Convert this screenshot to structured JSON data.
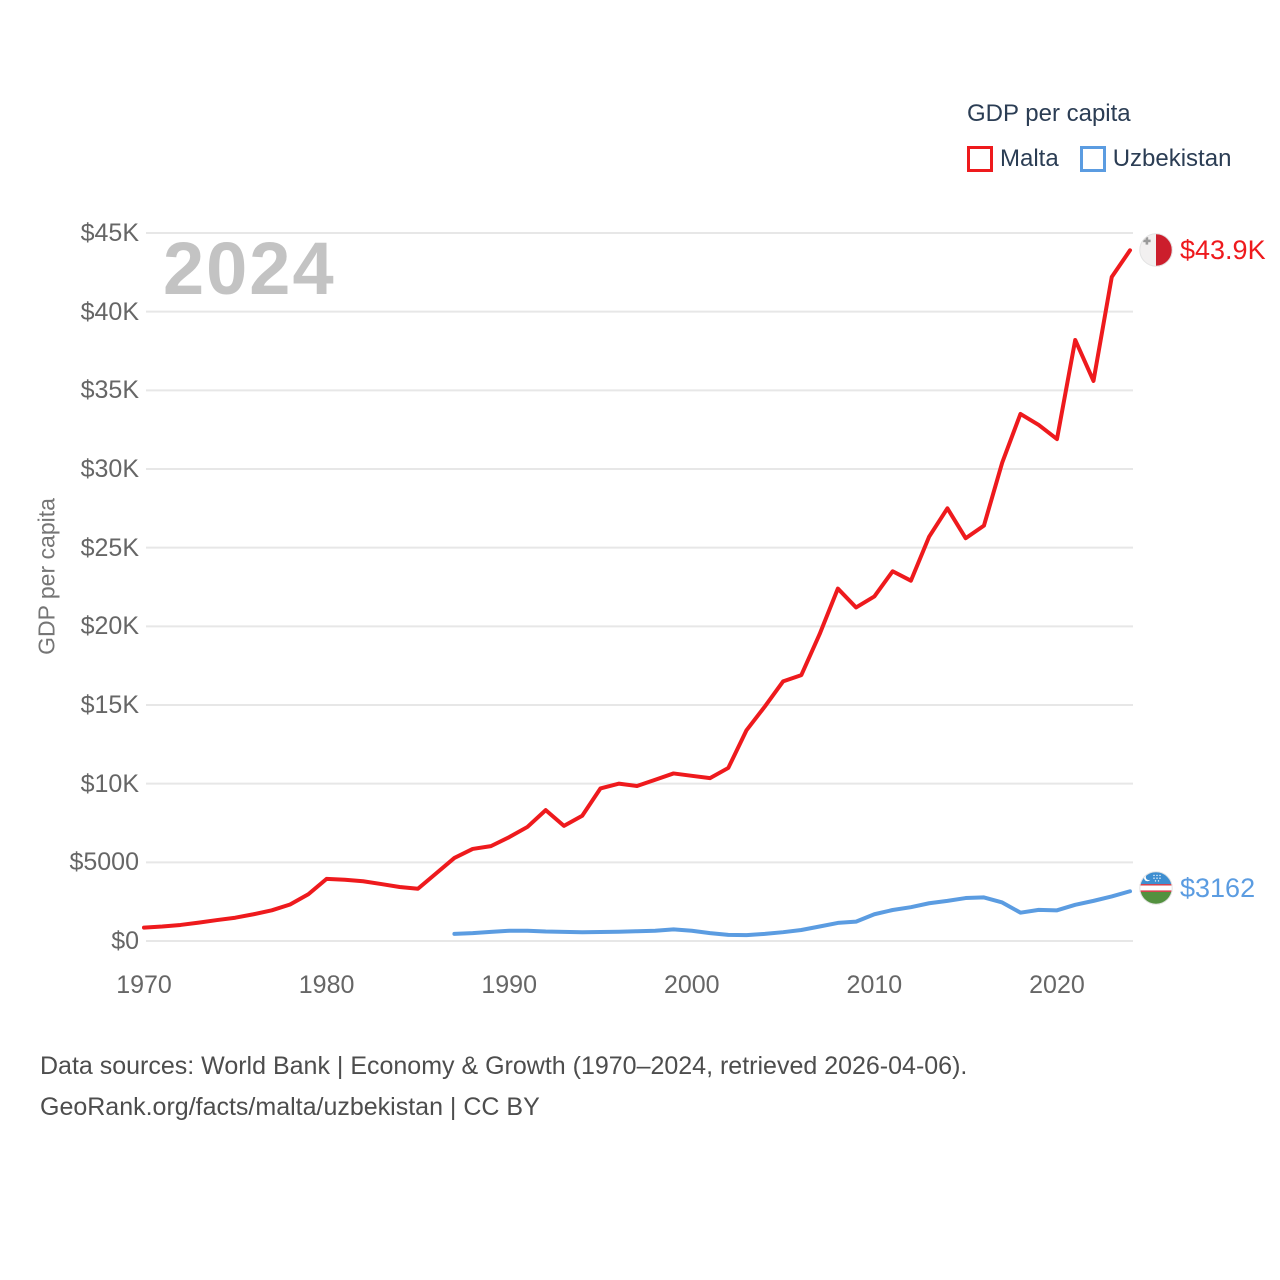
{
  "watermark": "2024",
  "legend": {
    "title": "GDP per capita",
    "items": [
      {
        "label": "Malta",
        "color": "#ee1a1d"
      },
      {
        "label": "Uzbekistan",
        "color": "#5b9ce1"
      }
    ]
  },
  "end_labels": {
    "malta": {
      "text": "$43.9K",
      "color": "#ee1a1d",
      "flag": "malta-flag"
    },
    "uzbekistan": {
      "text": "$3162",
      "color": "#5b9ce1",
      "flag": "uzbekistan-flag"
    }
  },
  "y_axis": {
    "title": "GDP per capita",
    "ticks": [
      {
        "label": "$0",
        "value": 0
      },
      {
        "label": "$5000",
        "value": 5000
      },
      {
        "label": "$10K",
        "value": 10000
      },
      {
        "label": "$15K",
        "value": 15000
      },
      {
        "label": "$20K",
        "value": 20000
      },
      {
        "label": "$25K",
        "value": 25000
      },
      {
        "label": "$30K",
        "value": 30000
      },
      {
        "label": "$35K",
        "value": 35000
      },
      {
        "label": "$40K",
        "value": 40000
      },
      {
        "label": "$45K",
        "value": 45000
      }
    ]
  },
  "x_axis": {
    "ticks": [
      {
        "label": "1970",
        "year": 1970
      },
      {
        "label": "1980",
        "year": 1980
      },
      {
        "label": "1990",
        "year": 1990
      },
      {
        "label": "2000",
        "year": 2000
      },
      {
        "label": "2010",
        "year": 2010
      },
      {
        "label": "2020",
        "year": 2020
      }
    ]
  },
  "footer": {
    "line1": "Data sources: World Bank | Economy & Growth (1970–2024, retrieved 2026-04-06).",
    "line2": "GeoRank.org/facts/malta/uzbekistan | CC BY"
  },
  "chart_data": {
    "type": "line",
    "title": "GDP per capita",
    "ylabel": "GDP per capita",
    "ylim": [
      0,
      45000
    ],
    "xlim": [
      1970,
      2024
    ],
    "grid": "horizontal",
    "legend_position": "top-right",
    "gridline_color": "#e7e7e7",
    "series": [
      {
        "name": "Malta",
        "color": "#ee1a1d",
        "end_label": "$43.9K",
        "x": [
          1970,
          1971,
          1972,
          1973,
          1974,
          1975,
          1976,
          1977,
          1978,
          1979,
          1980,
          1981,
          1982,
          1983,
          1984,
          1985,
          1986,
          1987,
          1988,
          1989,
          1990,
          1991,
          1992,
          1993,
          1994,
          1995,
          1996,
          1997,
          1998,
          1999,
          2000,
          2001,
          2002,
          2003,
          2004,
          2005,
          2006,
          2007,
          2008,
          2009,
          2010,
          2011,
          2012,
          2013,
          2014,
          2015,
          2016,
          2017,
          2018,
          2019,
          2020,
          2021,
          2022,
          2023,
          2024
        ],
        "values": [
          850,
          920,
          1020,
          1170,
          1330,
          1480,
          1700,
          1950,
          2320,
          2970,
          3950,
          3890,
          3800,
          3620,
          3430,
          3320,
          4300,
          5280,
          5850,
          6030,
          6600,
          7250,
          8320,
          7320,
          7960,
          9700,
          10000,
          9850,
          10250,
          10650,
          10500,
          10350,
          11000,
          13400,
          14900,
          16500,
          16900,
          19500,
          22400,
          21200,
          21900,
          23500,
          22900,
          25700,
          27500,
          25600,
          26400,
          30400,
          33500,
          32800,
          31900,
          38200,
          35600,
          42200,
          43900
        ]
      },
      {
        "name": "Uzbekistan",
        "color": "#5b9ce1",
        "end_label": "$3162",
        "x": [
          1987,
          1988,
          1989,
          1990,
          1991,
          1992,
          1993,
          1994,
          1995,
          1996,
          1997,
          1998,
          1999,
          2000,
          2001,
          2002,
          2003,
          2004,
          2005,
          2006,
          2007,
          2008,
          2009,
          2010,
          2011,
          2012,
          2013,
          2014,
          2015,
          2016,
          2017,
          2018,
          2019,
          2020,
          2021,
          2022,
          2023,
          2024
        ],
        "values": [
          450,
          500,
          580,
          650,
          650,
          600,
          580,
          560,
          570,
          590,
          620,
          650,
          740,
          650,
          500,
          390,
          370,
          450,
          560,
          700,
          920,
          1150,
          1230,
          1700,
          1970,
          2150,
          2400,
          2550,
          2730,
          2770,
          2450,
          1800,
          1980,
          1950,
          2300,
          2550,
          2830,
          3162
        ]
      }
    ]
  }
}
